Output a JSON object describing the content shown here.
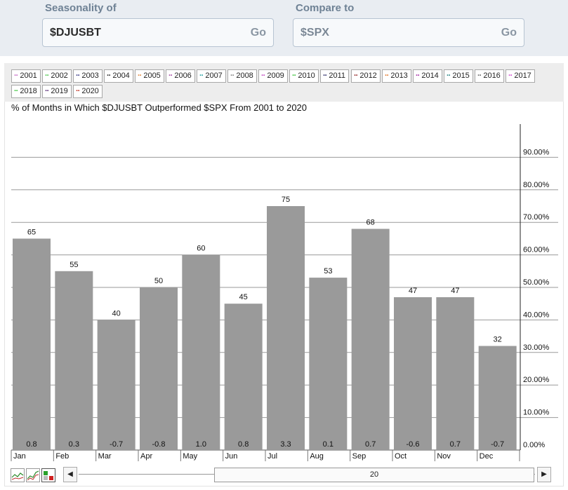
{
  "search": {
    "seasonality_label": "Seasonality of",
    "seasonality_value": "$DJUSBT",
    "compare_label": "Compare to",
    "compare_value": "$SPX",
    "go_label": "Go"
  },
  "legend": {
    "items": [
      {
        "label": "2001",
        "color": "#c060c0"
      },
      {
        "label": "2002",
        "color": "#40c040"
      },
      {
        "label": "2003",
        "color": "#303080"
      },
      {
        "label": "2004",
        "color": "#202020"
      },
      {
        "label": "2005",
        "color": "#e08030"
      },
      {
        "label": "2006",
        "color": "#a040a0"
      },
      {
        "label": "2007",
        "color": "#20a0a0"
      },
      {
        "label": "2008",
        "color": "#808080"
      },
      {
        "label": "2009",
        "color": "#c040c0"
      },
      {
        "label": "2010",
        "color": "#30c030"
      },
      {
        "label": "2011",
        "color": "#202060"
      },
      {
        "label": "2012",
        "color": "#902020"
      },
      {
        "label": "2013",
        "color": "#e07020"
      },
      {
        "label": "2014",
        "color": "#a020a0"
      },
      {
        "label": "2015",
        "color": "#208080"
      },
      {
        "label": "2016",
        "color": "#606060"
      },
      {
        "label": "2017",
        "color": "#d040d0"
      },
      {
        "label": "2018",
        "color": "#30c030"
      },
      {
        "label": "2019",
        "color": "#502070"
      },
      {
        "label": "2020",
        "color": "#c03020"
      }
    ]
  },
  "chart_data": {
    "type": "bar",
    "title": "% of Months in Which $DJUSBT Outperformed $SPX From 2001 to 2020",
    "categories": [
      "Jan",
      "Feb",
      "Mar",
      "Apr",
      "May",
      "Jun",
      "Jul",
      "Aug",
      "Sep",
      "Oct",
      "Nov",
      "Dec"
    ],
    "values": [
      65,
      55,
      40,
      50,
      60,
      45,
      75,
      53,
      68,
      47,
      47,
      32
    ],
    "value_labels": [
      "65",
      "55",
      "40",
      "50",
      "60",
      "45",
      "75",
      "53",
      "68",
      "47",
      "47",
      "32"
    ],
    "bottom_labels": [
      "0.8",
      "0.3",
      "-0.7",
      "-0.8",
      "1.0",
      "0.8",
      "3.3",
      "0.1",
      "0.7",
      "-0.6",
      "0.7",
      "-0.7"
    ],
    "y_ticks": [
      0,
      10,
      20,
      30,
      40,
      50,
      60,
      70,
      80,
      90
    ],
    "y_tick_labels": [
      "0.00%",
      "10.00%",
      "20.00%",
      "30.00%",
      "40.00%",
      "50.00%",
      "60.00%",
      "70.00%",
      "80.00%",
      "90.00%"
    ],
    "ylim": [
      0,
      100
    ],
    "grid": true,
    "y_axis_side": "right",
    "bar_color": "#9a9a9a"
  },
  "scroller": {
    "value": "20",
    "left_arrow": "◀",
    "right_arrow": "▶"
  }
}
